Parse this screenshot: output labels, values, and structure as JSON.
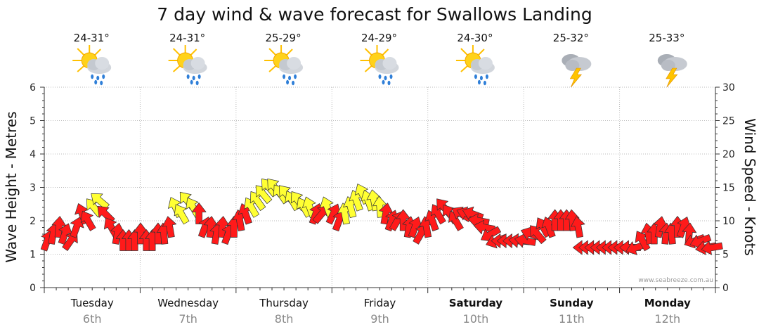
{
  "chart_data": {
    "type": "line",
    "title": "7 day wind & wave forecast for Swallows Landing",
    "y_left_label": "Wave Height - Metres",
    "y_right_label": "Wind Speed - Knots",
    "y_left_range": [
      0,
      6
    ],
    "y_right_range": [
      0,
      30
    ],
    "y_left_ticks": [
      "0",
      "1",
      "2",
      "3",
      "4",
      "5",
      "6"
    ],
    "y_right_ticks": [
      "0",
      "5",
      "10",
      "15",
      "20",
      "25",
      "30"
    ],
    "grid": true,
    "credit": "www.seabreeze.com.au",
    "colors": {
      "light_wind": "#ffff33",
      "strong_wind": "#ff1a1a",
      "outline": "#333333",
      "grid": "#bbbbbb"
    },
    "days": [
      {
        "day": "Tuesday",
        "date": "6th",
        "temp": "24-31°",
        "icon": "sun-cloud-rain-icon",
        "weekend": false
      },
      {
        "day": "Wednesday",
        "date": "7th",
        "temp": "24-31°",
        "icon": "sun-cloud-rain-icon",
        "weekend": false
      },
      {
        "day": "Thursday",
        "date": "8th",
        "temp": "25-29°",
        "icon": "sun-cloud-rain-icon",
        "weekend": false
      },
      {
        "day": "Friday",
        "date": "9th",
        "temp": "24-29°",
        "icon": "sun-cloud-rain-icon",
        "weekend": false
      },
      {
        "day": "Saturday",
        "date": "10th",
        "temp": "24-30°",
        "icon": "sun-cloud-rain-icon",
        "weekend": true
      },
      {
        "day": "Sunday",
        "date": "11th",
        "temp": "25-32°",
        "icon": "thunderstorm-icon",
        "weekend": true
      },
      {
        "day": "Monday",
        "date": "12th",
        "temp": "25-33°",
        "icon": "thunderstorm-icon",
        "weekend": true
      }
    ],
    "wind_knots": [
      7,
      8,
      9,
      8,
      7,
      9,
      11,
      10,
      12,
      13,
      11,
      9,
      8,
      7,
      7,
      7,
      8,
      7,
      7,
      8,
      8,
      9,
      12,
      11,
      13,
      12,
      11,
      9,
      9,
      8,
      9,
      8,
      9,
      10,
      11,
      12,
      13,
      14,
      15,
      15,
      14,
      14,
      13,
      13,
      12,
      12,
      11,
      11,
      12,
      11,
      10,
      11,
      12,
      13,
      14,
      13,
      13,
      12,
      11,
      10,
      10,
      10,
      9,
      9,
      8,
      9,
      10,
      11,
      12,
      11,
      10,
      11,
      11,
      11,
      10,
      9,
      8,
      7,
      7,
      7,
      7,
      7,
      7,
      8,
      8,
      9,
      9,
      10,
      10,
      10,
      10,
      9,
      6,
      6,
      6,
      6,
      6,
      6,
      6,
      6,
      6,
      6,
      7,
      8,
      8,
      9,
      8,
      8,
      9,
      9,
      8,
      7,
      7,
      6,
      6
    ],
    "strong_wind": [
      1,
      1,
      1,
      1,
      1,
      1,
      1,
      1,
      0,
      0,
      1,
      1,
      1,
      1,
      1,
      1,
      1,
      1,
      1,
      1,
      1,
      1,
      0,
      0,
      0,
      0,
      1,
      1,
      1,
      1,
      1,
      1,
      1,
      1,
      1,
      0,
      0,
      0,
      0,
      0,
      0,
      0,
      0,
      0,
      0,
      0,
      1,
      1,
      0,
      1,
      1,
      0,
      0,
      0,
      0,
      0,
      0,
      0,
      1,
      1,
      1,
      1,
      1,
      1,
      1,
      1,
      1,
      1,
      1,
      1,
      1,
      1,
      1,
      1,
      1,
      1,
      1,
      1,
      1,
      1,
      1,
      1,
      1,
      1,
      1,
      1,
      1,
      1,
      1,
      1,
      1,
      1,
      1,
      1,
      1,
      1,
      1,
      1,
      1,
      1,
      1,
      1,
      1,
      1,
      1,
      1,
      1,
      1,
      1,
      1,
      1,
      1,
      1,
      1,
      1
    ],
    "direction_deg": [
      200,
      190,
      185,
      200,
      215,
      200,
      160,
      150,
      140,
      130,
      135,
      150,
      190,
      180,
      180,
      180,
      180,
      180,
      180,
      180,
      175,
      170,
      155,
      150,
      140,
      150,
      180,
      200,
      185,
      190,
      185,
      200,
      180,
      170,
      160,
      150,
      145,
      140,
      140,
      140,
      145,
      140,
      150,
      145,
      150,
      160,
      200,
      220,
      160,
      205,
      200,
      170,
      165,
      160,
      155,
      160,
      170,
      175,
      190,
      200,
      210,
      180,
      190,
      200,
      210,
      170,
      160,
      150,
      140,
      145,
      150,
      120,
      110,
      110,
      100,
      100,
      60,
      70,
      90,
      90,
      90,
      95,
      100,
      110,
      140,
      150,
      160,
      180,
      180,
      180,
      175,
      170,
      90,
      90,
      90,
      90,
      90,
      90,
      90,
      90,
      90,
      70,
      150,
      170,
      180,
      190,
      185,
      175,
      180,
      200,
      185,
      70,
      70,
      80,
      80
    ]
  }
}
